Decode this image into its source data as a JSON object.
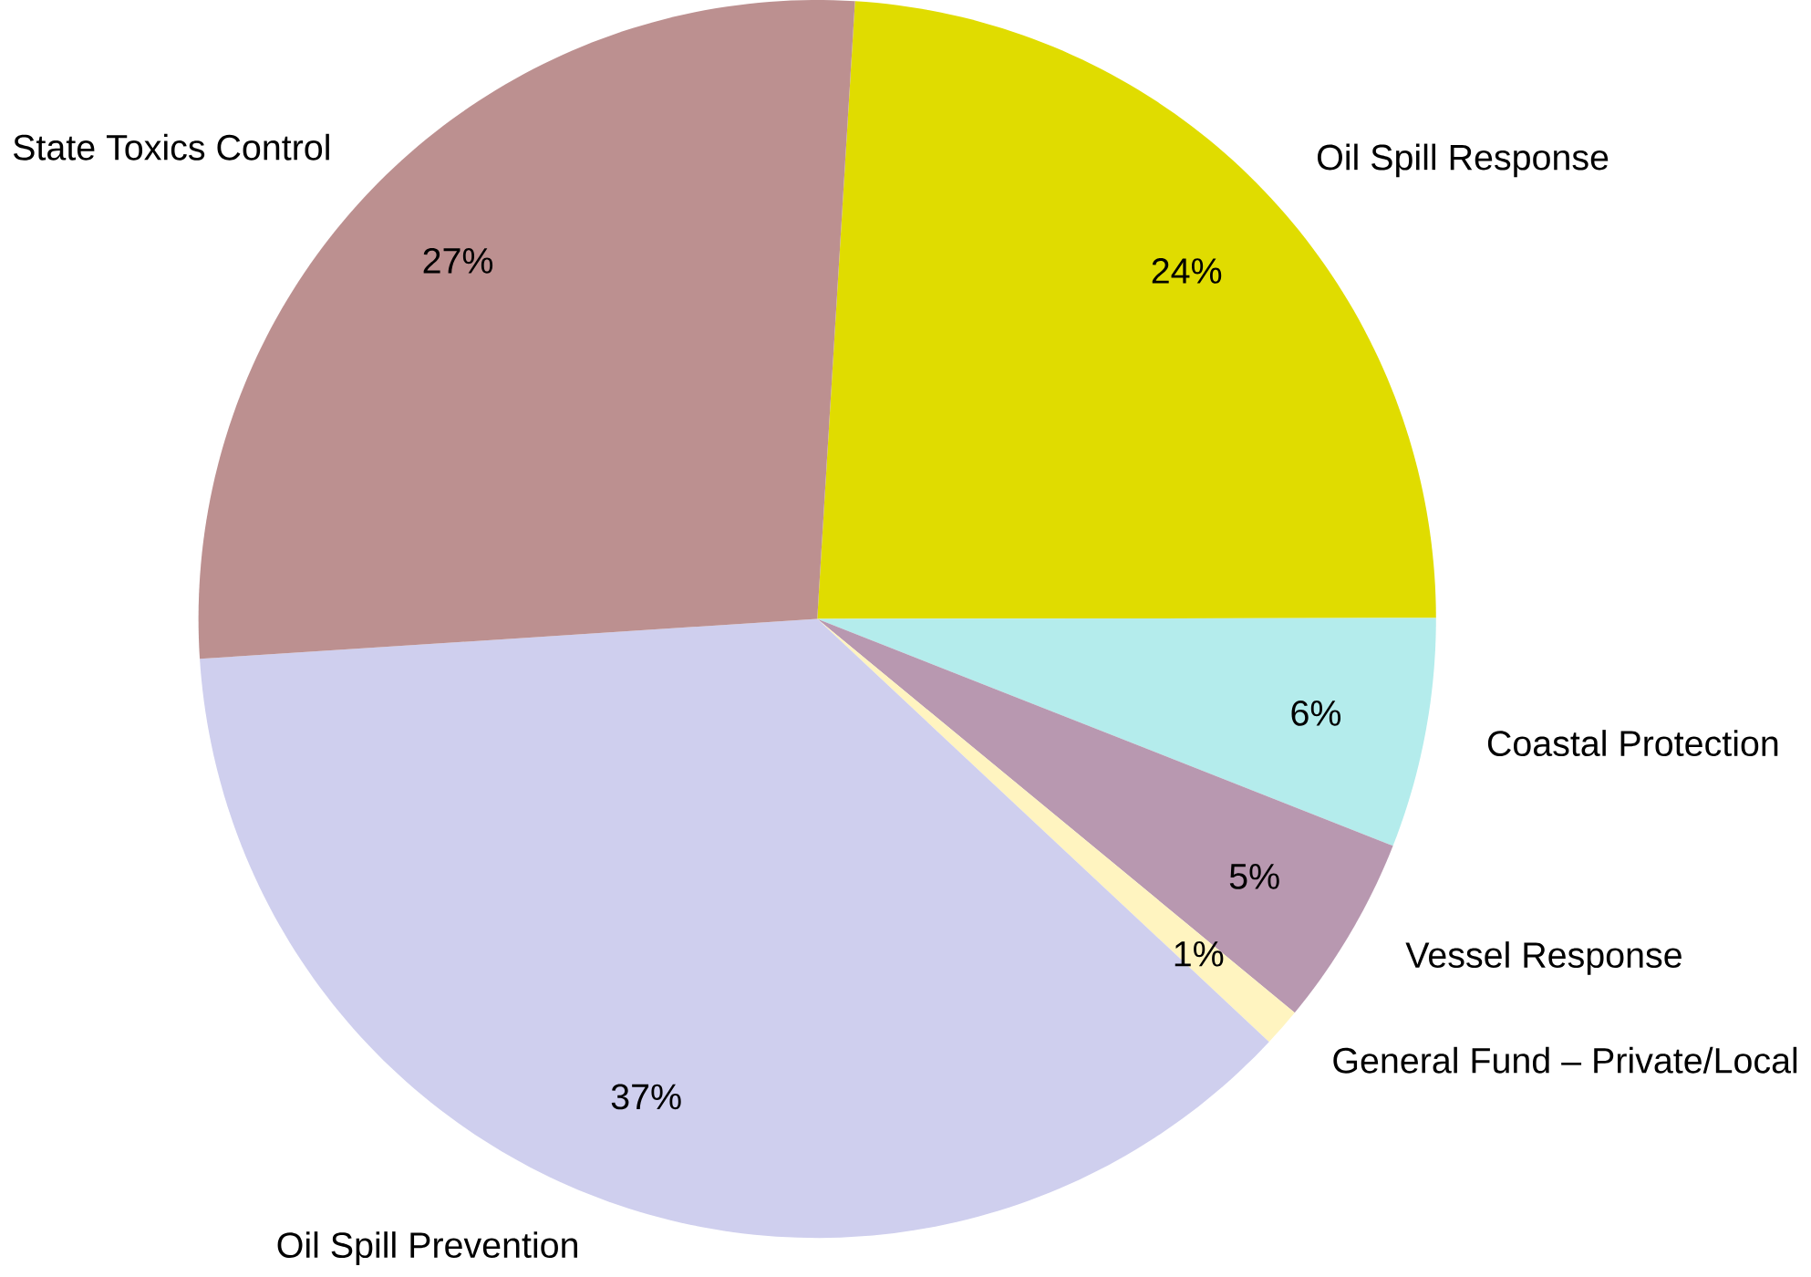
{
  "chart_data": {
    "type": "pie",
    "categories": [
      "Oil Spill Response",
      "Coastal Protection",
      "Vessel Response",
      "General Fund – Private/Local",
      "Oil Spill Prevention",
      "State Toxics Control"
    ],
    "values": [
      24,
      6,
      5,
      1,
      37,
      27
    ],
    "value_labels": [
      "24%",
      "6%",
      "5%",
      "1%",
      "37%",
      "27%"
    ],
    "colors": [
      "#e0dc00",
      "#b4ecec",
      "#b898b0",
      "#fff4c0",
      "#cfcfee",
      "#bc9090"
    ]
  }
}
